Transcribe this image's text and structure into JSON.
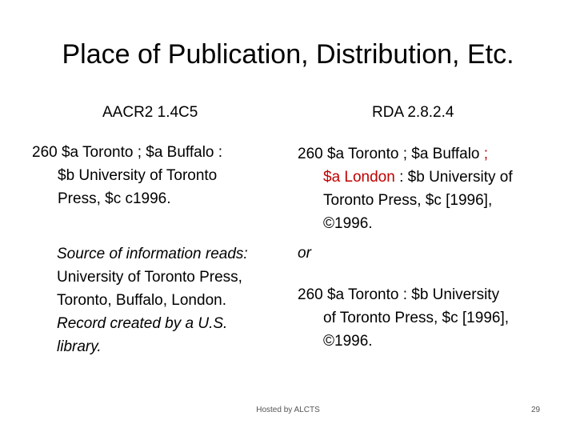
{
  "slide": {
    "title": "Place of Publication, Distribution, Etc."
  },
  "left_column": {
    "heading": "AACR2  1.4C5",
    "record": {
      "line1": "260   $a Toronto ; $a Buffalo :",
      "line2": "$b University of Toronto",
      "line3": "Press, $c c1996."
    },
    "source_note": {
      "line1": "Source of information reads:",
      "line2": "University of Toronto Press,",
      "line3": "Toronto, Buffalo, London.",
      "line4": "Record created by a U.S.",
      "line5": "library."
    }
  },
  "right_column": {
    "heading": "RDA  2.8.2.4",
    "record_1": {
      "line1_a": "260   $a Toronto ; $a Buffalo ",
      "line1_b": ";",
      "line2_a": "$a London",
      "line2_b": " : $b University of",
      "line3": "Toronto Press, $c [1996],",
      "line4": "©1996."
    },
    "or_label": "or",
    "record_2": {
      "line1": "260   $a Toronto : $b University",
      "line2": "of Toronto Press, $c [1996],",
      "line3": "©1996."
    }
  },
  "footer": {
    "hosted_by": "Hosted by ALCTS",
    "page_number": "29"
  },
  "colors": {
    "highlight": "#c00000",
    "text": "#000000",
    "footer_text": "#555555"
  }
}
